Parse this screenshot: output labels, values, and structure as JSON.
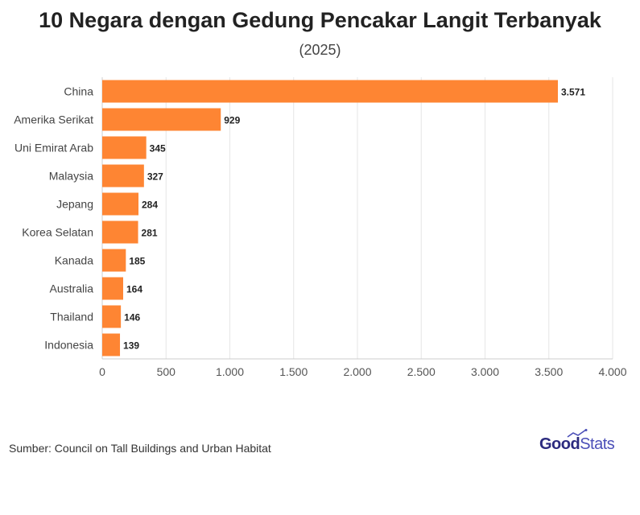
{
  "header": {
    "title": "10 Negara dengan Gedung Pencakar Langit Terbanyak",
    "subtitle": "(2025)"
  },
  "footer": {
    "source": "Sumber: Council on Tall Buildings and Urban Habitat",
    "logo_part1": "Good",
    "logo_part2": "Stats"
  },
  "colors": {
    "bar": "#fe8533",
    "grid": "#e6e6e6",
    "axis_text": "#555555",
    "label_text": "#444444",
    "value_text": "#222222",
    "logo": "#2b2a7e"
  },
  "chart_data": {
    "type": "bar",
    "orientation": "horizontal",
    "title": "10 Negara dengan Gedung Pencakar Langit Terbanyak",
    "subtitle": "(2025)",
    "categories": [
      "China",
      "Amerika Serikat",
      "Uni Emirat Arab",
      "Malaysia",
      "Jepang",
      "Korea Selatan",
      "Kanada",
      "Australia",
      "Thailand",
      "Indonesia"
    ],
    "values": [
      3571,
      929,
      345,
      327,
      284,
      281,
      185,
      164,
      146,
      139
    ],
    "value_labels": [
      "3.571",
      "929",
      "345",
      "327",
      "284",
      "281",
      "185",
      "164",
      "146",
      "139"
    ],
    "xlim": [
      0,
      4000
    ],
    "xticks": [
      0,
      500,
      1000,
      1500,
      2000,
      2500,
      3000,
      3500,
      4000
    ],
    "xtick_labels": [
      "0",
      "500",
      "1.000",
      "1.500",
      "2.000",
      "2.500",
      "3.000",
      "3.500",
      "4.000"
    ],
    "grid": true
  }
}
